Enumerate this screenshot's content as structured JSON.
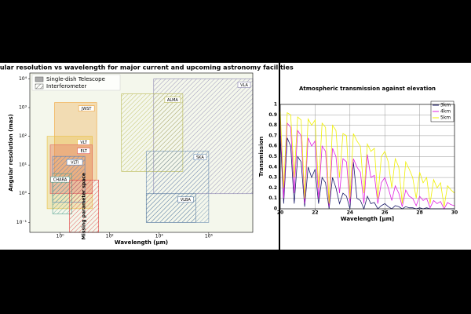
{
  "chart_data": [
    {
      "type": "region",
      "title": "Angular resolution vs wavelength for major current and upcoming astronomy facilities",
      "xlabel": "Wavelength (μm)",
      "ylabel": "Angular resolution (mas)",
      "xscale": "log",
      "yscale": "log",
      "xlim": [
        0.06,
        60000000
      ],
      "ylim": [
        0.045,
        16000
      ],
      "xticks": [
        {
          "value": 1,
          "label": "10⁰"
        },
        {
          "value": 100,
          "label": "10²"
        },
        {
          "value": 10000,
          "label": "10⁴"
        },
        {
          "value": 1000000,
          "label": "10⁶"
        }
      ],
      "yticks": [
        {
          "value": 0.1,
          "label": "10⁻¹"
        },
        {
          "value": 1,
          "label": "10⁰"
        },
        {
          "value": 10,
          "label": "10¹"
        },
        {
          "value": 100,
          "label": "10²"
        },
        {
          "value": 1000,
          "label": "10³"
        },
        {
          "value": 10000,
          "label": "10⁴"
        }
      ],
      "legend": [
        {
          "label": "Single-dish Telescope",
          "style": "solid"
        },
        {
          "label": "Interferometer",
          "style": "hatched"
        }
      ],
      "legend_loc": "upper left",
      "regions": [
        {
          "label": "VLA",
          "color": "#8a84b0",
          "style": "hatched",
          "x": [
            6000,
            60000000
          ],
          "y": [
            1,
            10000
          ]
        },
        {
          "label": "ALMA",
          "color": "#b8b850",
          "style": "hatched",
          "x": [
            300,
            90000
          ],
          "y": [
            6,
            3000
          ]
        },
        {
          "label": "SKA",
          "color": "#6a8cb0",
          "style": "hatched",
          "x": [
            3000,
            1000000
          ],
          "y": [
            0.1,
            30
          ]
        },
        {
          "label": "VLBA",
          "color": "#5a7ca0",
          "style": "hatched",
          "x": [
            3000,
            300000
          ],
          "y": [
            0.1,
            1
          ]
        },
        {
          "label": "JWST",
          "color": "#f0a030",
          "style": "solid",
          "x": [
            0.6,
            30
          ],
          "y": [
            3,
            1500
          ]
        },
        {
          "label": "VLT",
          "color": "#e8c040",
          "style": "solid",
          "x": [
            0.3,
            20
          ],
          "y": [
            0.3,
            100
          ]
        },
        {
          "label": "ELT",
          "color": "#e06060",
          "style": "solid",
          "x": [
            0.4,
            20
          ],
          "y": [
            1,
            50
          ]
        },
        {
          "label": "VLTI",
          "color": "#5080c0",
          "style": "hatched",
          "x": [
            0.5,
            10
          ],
          "y": [
            0.5,
            20
          ]
        },
        {
          "label": "CHARA",
          "color": "#50a090",
          "style": "hatched",
          "x": [
            0.5,
            3
          ],
          "y": [
            0.2,
            5
          ]
        },
        {
          "label": "Missing parameter space",
          "color": "#e04040",
          "style": "hatched",
          "x": [
            2.4,
            36
          ],
          "y": [
            0.045,
            3
          ]
        }
      ]
    },
    {
      "type": "line",
      "title": "Atmospheric transmission against elevation",
      "xlabel": "Wavelength [μm]",
      "ylabel": "Transmission",
      "xlim": [
        20,
        30
      ],
      "ylim": [
        0,
        1
      ],
      "xticks": [
        20,
        22,
        24,
        26,
        28,
        30
      ],
      "yticks": [
        0,
        0.1,
        0.2,
        0.3,
        0.4,
        0.5,
        0.6,
        0.7,
        0.8,
        0.9,
        1
      ],
      "grid": true,
      "legend_loc": "upper right",
      "x": [
        20,
        20.2,
        20.4,
        20.6,
        20.8,
        21,
        21.2,
        21.4,
        21.6,
        21.8,
        22,
        22.2,
        22.4,
        22.6,
        22.8,
        23,
        23.2,
        23.4,
        23.6,
        23.8,
        24,
        24.2,
        24.4,
        24.6,
        24.8,
        25,
        25.2,
        25.4,
        25.6,
        25.8,
        26,
        26.2,
        26.4,
        26.6,
        26.8,
        27,
        27.2,
        27.4,
        27.6,
        27.8,
        28,
        28.2,
        28.4,
        28.6,
        28.8,
        29,
        29.2,
        29.4,
        29.6,
        29.8,
        30
      ],
      "series": [
        {
          "name": "3km",
          "color": "#1c1c6a",
          "values": [
            0.7,
            0.05,
            0.68,
            0.6,
            0.05,
            0.5,
            0.45,
            0.02,
            0.4,
            0.3,
            0.38,
            0.05,
            0.3,
            0.25,
            0,
            0.3,
            0.2,
            0.05,
            0.15,
            0.12,
            0,
            0.45,
            0.1,
            0.08,
            0,
            0.12,
            0.05,
            0.06,
            0,
            0.03,
            0.05,
            0.02,
            0,
            0.03,
            0.02,
            0,
            0.02,
            0.01,
            0.01,
            0,
            0.01,
            0,
            0.01,
            0,
            0,
            0,
            0,
            0,
            0,
            0,
            0
          ]
        },
        {
          "name": "4km",
          "color": "#e020e0",
          "values": [
            0.85,
            0.1,
            0.82,
            0.78,
            0.15,
            0.75,
            0.7,
            0.05,
            0.68,
            0.6,
            0.65,
            0.1,
            0.6,
            0.55,
            0.02,
            0.58,
            0.5,
            0.15,
            0.48,
            0.45,
            0.05,
            0.48,
            0.4,
            0.35,
            0.05,
            0.52,
            0.3,
            0.32,
            0.05,
            0.25,
            0.3,
            0.2,
            0.08,
            0.22,
            0.15,
            0.02,
            0.18,
            0.12,
            0.1,
            0.03,
            0.12,
            0.08,
            0.1,
            0.01,
            0.08,
            0.05,
            0.07,
            0,
            0.06,
            0.04,
            0.03
          ]
        },
        {
          "name": "5km",
          "color": "#f0f000",
          "values": [
            0.93,
            0.2,
            0.92,
            0.9,
            0.3,
            0.88,
            0.85,
            0.1,
            0.86,
            0.8,
            0.85,
            0.2,
            0.82,
            0.78,
            0.05,
            0.8,
            0.75,
            0.3,
            0.72,
            0.7,
            0.1,
            0.72,
            0.65,
            0.6,
            0.15,
            0.62,
            0.55,
            0.58,
            0.1,
            0.5,
            0.55,
            0.45,
            0.2,
            0.48,
            0.4,
            0.05,
            0.45,
            0.38,
            0.3,
            0.1,
            0.35,
            0.25,
            0.3,
            0.05,
            0.28,
            0.2,
            0.25,
            0.02,
            0.22,
            0.18,
            0.15
          ]
        }
      ]
    }
  ]
}
